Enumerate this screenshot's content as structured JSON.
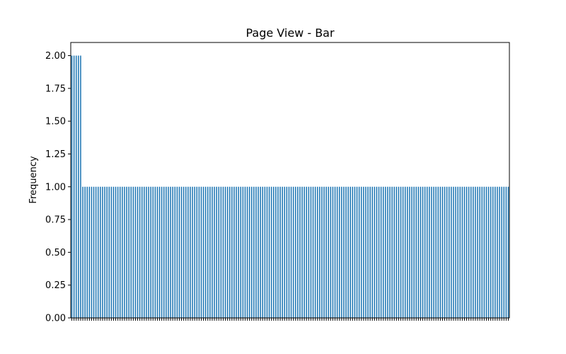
{
  "chart_data": {
    "type": "bar",
    "title": "Page View - Bar",
    "xlabel": "",
    "ylabel": "Frequency",
    "ylim": [
      0,
      2.1
    ],
    "yticks": [
      "0.00",
      "0.25",
      "0.50",
      "0.75",
      "1.00",
      "1.25",
      "1.50",
      "1.75",
      "2.00"
    ],
    "grid": false,
    "legend": "none",
    "bar_color": "#1f77b4",
    "leading_values": [
      2,
      2,
      2,
      2,
      2
    ],
    "trailing_value": 1,
    "bar_count": 200
  }
}
